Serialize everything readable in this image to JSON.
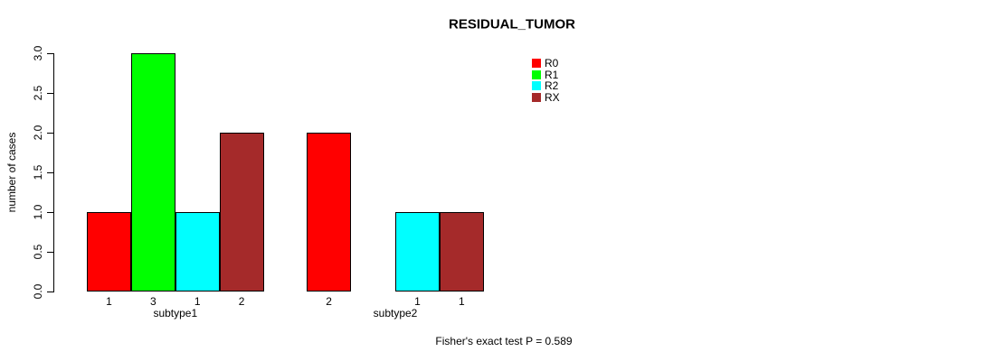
{
  "chart_data": {
    "type": "bar",
    "title": "RESIDUAL_TUMOR",
    "ylabel": "number of cases",
    "xlabel": "",
    "categories": [
      "subtype1",
      "subtype2"
    ],
    "series": [
      {
        "name": "R0",
        "color": "#FF0000",
        "values": [
          1,
          2
        ]
      },
      {
        "name": "R1",
        "color": "#00FF00",
        "values": [
          3,
          0
        ]
      },
      {
        "name": "R2",
        "color": "#00FFFF",
        "values": [
          1,
          1
        ]
      },
      {
        "name": "RX",
        "color": "#A52A2A",
        "values": [
          2,
          1
        ]
      }
    ],
    "bar_value_labels": [
      [
        "1",
        "3",
        "1",
        "2"
      ],
      [
        "2",
        "",
        "1",
        "1"
      ]
    ],
    "ytick_labels": [
      "0.0",
      "0.5",
      "1.0",
      "1.5",
      "2.0",
      "2.5",
      "3.0"
    ],
    "ylim": [
      0,
      3
    ],
    "grid": false,
    "legend_position": "top-right",
    "annotation": "Fisher's exact test P = 0.589",
    "colors": {
      "axis": "#000000",
      "bar_border": "#000000",
      "background": "#ffffff"
    }
  }
}
